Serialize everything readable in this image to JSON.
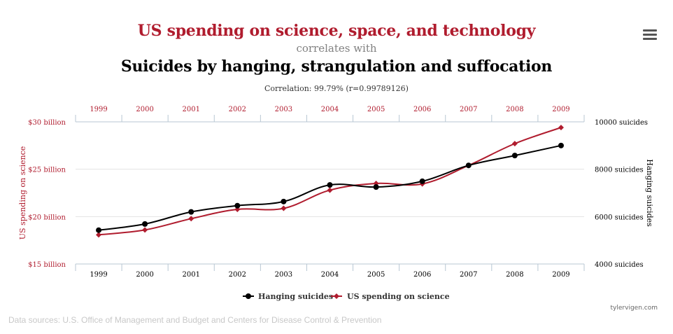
{
  "header": {
    "title": "US spending on science, space, and technology",
    "connector": "correlates with",
    "subtitle": "Suicides by hanging, strangulation and suffocation",
    "correlation": "Correlation: 99.79% (r=0.99789126)"
  },
  "menu_icon": "hamburger-menu-icon",
  "credit": "tylervigen.com",
  "sources": "Data sources: U.S. Office of Management and Budget and Centers for Disease Control & Prevention",
  "colors": {
    "science": "#b01c2e",
    "suicides": "#000000",
    "grid": "#e2e2e2",
    "axis": "#b8c7d3"
  },
  "chart_data": {
    "type": "line",
    "x": [
      1999,
      2000,
      2001,
      2002,
      2003,
      2004,
      2005,
      2006,
      2007,
      2008,
      2009
    ],
    "xlabels": [
      "1999",
      "2000",
      "2001",
      "2002",
      "2003",
      "2004",
      "2005",
      "2006",
      "2007",
      "2008",
      "2009"
    ],
    "left_axis": {
      "label": "US spending on science",
      "range": [
        15,
        30
      ],
      "ticks": [
        {
          "value": 15,
          "label": "$15 billion"
        },
        {
          "value": 20,
          "label": "$20 billion"
        },
        {
          "value": 25,
          "label": "$25 billion"
        },
        {
          "value": 30,
          "label": "$30 billion"
        }
      ]
    },
    "right_axis": {
      "label": "Hanging suicides",
      "range": [
        4000,
        10000
      ],
      "ticks": [
        {
          "value": 4000,
          "label": "4000 suicides"
        },
        {
          "value": 6000,
          "label": "6000 suicides"
        },
        {
          "value": 8000,
          "label": "8000 suicides"
        },
        {
          "value": 10000,
          "label": "10000 suicides"
        }
      ]
    },
    "series": [
      {
        "name": "Hanging suicides",
        "axis": "right",
        "color": "#000000",
        "values": [
          5427,
          5688,
          6198,
          6462,
          6635,
          7336,
          7248,
          7491,
          8161,
          8578,
          9000
        ]
      },
      {
        "name": "US spending on science",
        "axis": "left",
        "color": "#b01c2e",
        "values": [
          18.08,
          18.59,
          19.78,
          20.76,
          20.87,
          22.79,
          23.5,
          23.45,
          25.4,
          27.7,
          29.4
        ]
      }
    ],
    "grid": true,
    "legend": "bottom-center"
  }
}
